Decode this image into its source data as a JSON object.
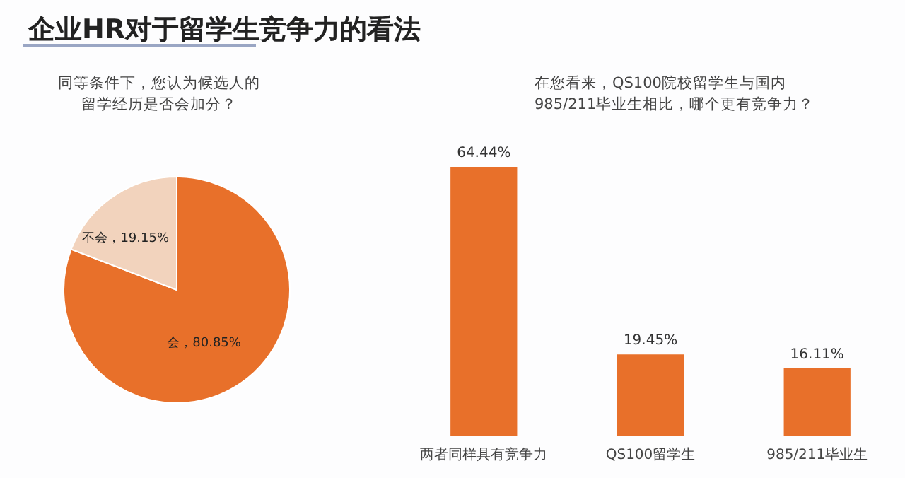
{
  "chart_data": [
    {
      "type": "pie",
      "title": "企业HR对于留学生竞争力的看法",
      "subtitle": "同等条件下，您认为候选人的留学经历是否会加分？",
      "categories": [
        "会",
        "不会"
      ],
      "values": [
        80.85,
        19.15
      ],
      "colors": [
        "#e8702a",
        "#f2d3bd"
      ],
      "value_labels": [
        "80.85%",
        "19.15%"
      ]
    },
    {
      "type": "bar",
      "title": "在您看来，QS100院校留学生与国内985/211毕业生相比，哪个更有竞争力？",
      "categories": [
        "两者同样具有竞争力",
        "QS100留学生",
        "985/211毕业生"
      ],
      "values": [
        64.44,
        19.45,
        16.11
      ],
      "color": "#e8702a",
      "value_labels": [
        "64.44%",
        "19.45%",
        "16.11%"
      ]
    }
  ]
}
